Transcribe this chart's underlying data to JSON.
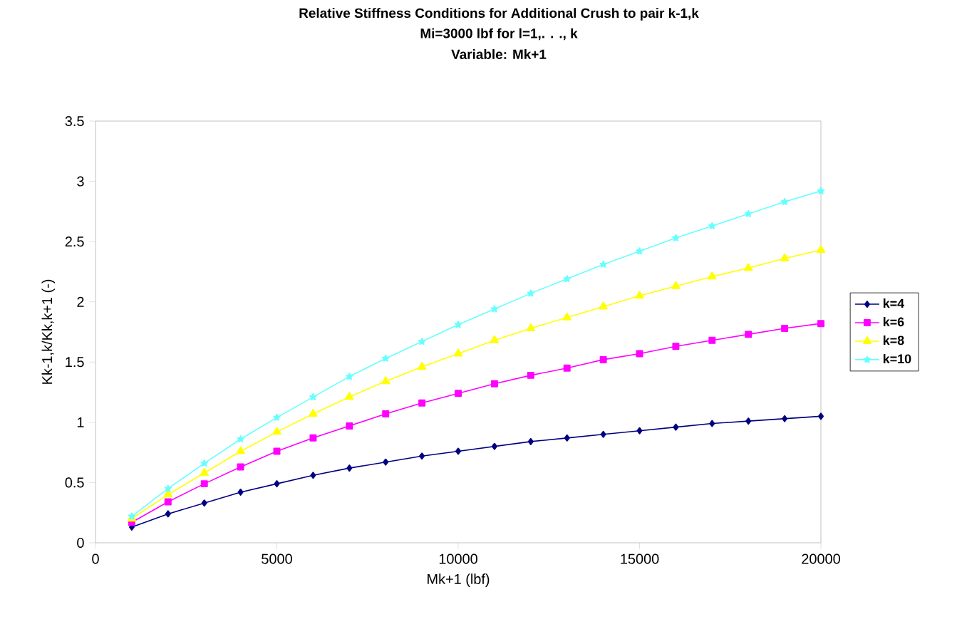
{
  "chart_data": {
    "type": "line",
    "title": "Relative Stiffness Conditions for Additional Crush to pair k-1,k",
    "subtitle": "Mi=3000 lbf for l=1,. . ., k",
    "annotations": [
      "Variable: Mk+1"
    ],
    "xlabel": "Mk+1 (lbf)",
    "ylabel": "Kk-1,k/Kk,k+1 (-)",
    "x": [
      1000,
      2000,
      3000,
      4000,
      5000,
      6000,
      7000,
      8000,
      9000,
      10000,
      11000,
      12000,
      13000,
      14000,
      15000,
      16000,
      17000,
      18000,
      19000,
      20000
    ],
    "series": [
      {
        "name": "k=4",
        "color": "#000080",
        "marker": "diamond",
        "values": [
          0.13,
          0.24,
          0.33,
          0.42,
          0.49,
          0.56,
          0.62,
          0.67,
          0.72,
          0.76,
          0.8,
          0.84,
          0.87,
          0.9,
          0.93,
          0.96,
          0.99,
          1.01,
          1.03,
          1.05
        ]
      },
      {
        "name": "k=6",
        "color": "#ff00ff",
        "marker": "square",
        "values": [
          0.17,
          0.34,
          0.49,
          0.63,
          0.76,
          0.87,
          0.97,
          1.07,
          1.16,
          1.24,
          1.32,
          1.39,
          1.45,
          1.52,
          1.57,
          1.63,
          1.68,
          1.73,
          1.78,
          1.82
        ]
      },
      {
        "name": "k=8",
        "color": "#ffff00",
        "marker": "triangle",
        "values": [
          0.2,
          0.4,
          0.58,
          0.76,
          0.92,
          1.07,
          1.21,
          1.34,
          1.46,
          1.57,
          1.68,
          1.78,
          1.87,
          1.96,
          2.05,
          2.13,
          2.21,
          2.28,
          2.36,
          2.43
        ]
      },
      {
        "name": "k=10",
        "color": "#66ffff",
        "marker": "star",
        "values": [
          0.22,
          0.45,
          0.66,
          0.86,
          1.04,
          1.21,
          1.38,
          1.53,
          1.67,
          1.81,
          1.94,
          2.07,
          2.19,
          2.31,
          2.42,
          2.53,
          2.63,
          2.73,
          2.83,
          2.92
        ]
      }
    ],
    "xlim": [
      0,
      20000
    ],
    "xticks": [
      0,
      5000,
      10000,
      15000,
      20000
    ],
    "ylim": [
      0,
      3.5
    ],
    "yticks": [
      0,
      0.5,
      1,
      1.5,
      2,
      2.5,
      3,
      3.5
    ],
    "grid": false,
    "legend": "right",
    "line_style": "solid"
  }
}
